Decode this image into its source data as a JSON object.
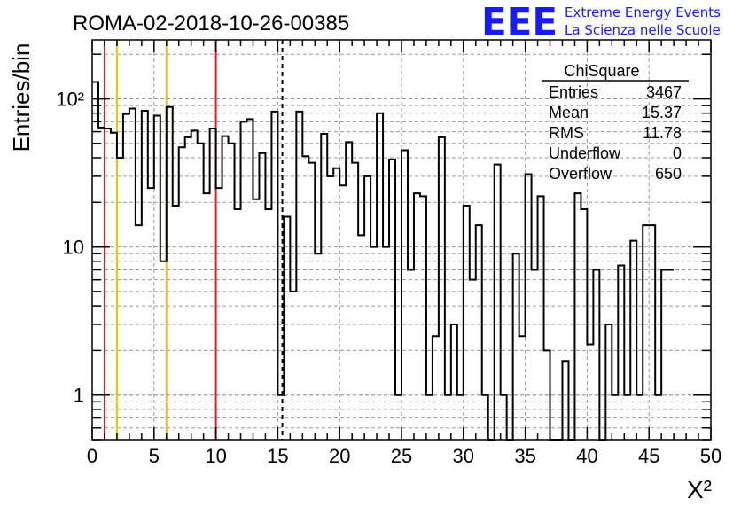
{
  "logo": {
    "text": "EEE",
    "line1": "Extreme Energy Events",
    "line2": "La Scienza nelle Scuole",
    "color": "#1a1aff"
  },
  "chart_data": {
    "type": "histogram",
    "title": "ROMA-02-2018-10-26-00385",
    "xlabel": "X²",
    "ylabel": "Entries/bin",
    "xlim": [
      0,
      50
    ],
    "ylim": [
      0.5,
      250
    ],
    "y_scale": "log",
    "grid": true,
    "bin_width": 0.5,
    "x_ticks": [
      0,
      5,
      10,
      15,
      20,
      25,
      30,
      35,
      40,
      45,
      50
    ],
    "y_ticks": [
      {
        "value": 1,
        "label": "1"
      },
      {
        "value": 10,
        "label": "10"
      },
      {
        "value": 100,
        "label": "10²"
      }
    ],
    "values": [
      130,
      64,
      63,
      59,
      40,
      79,
      86,
      14,
      83,
      25,
      77,
      8,
      88,
      19,
      47,
      55,
      61,
      50,
      23,
      63,
      25,
      56,
      50,
      18,
      70,
      73,
      21,
      43,
      18,
      82,
      1,
      16,
      5,
      82,
      41,
      37,
      9,
      58,
      30,
      34,
      26,
      51,
      37,
      12,
      30,
      10,
      80,
      10,
      39,
      1,
      45,
      7,
      23,
      22,
      1,
      2.5,
      55,
      1,
      3,
      1,
      19,
      6,
      14,
      1,
      0.5,
      36,
      1,
      0.5,
      9,
      2.5,
      31,
      7,
      22,
      2,
      0.5,
      0.5,
      1.7,
      0.5,
      23,
      18,
      2.2,
      7,
      0.5,
      3,
      1,
      7.5,
      1,
      11,
      1,
      14,
      14,
      1,
      7,
      7
    ],
    "vertical_lines": [
      {
        "x": 1,
        "color": "#e02020",
        "style": "solid"
      },
      {
        "x": 2,
        "color": "#f2c200",
        "style": "solid"
      },
      {
        "x": 6,
        "color": "#f2c200",
        "style": "solid"
      },
      {
        "x": 10,
        "color": "#e02020",
        "style": "solid"
      },
      {
        "x": 15.37,
        "color": "#000000",
        "style": "dashed"
      }
    ],
    "stats": {
      "title": "ChiSquare",
      "rows": [
        {
          "label": "Entries",
          "value": "3467"
        },
        {
          "label": "Mean",
          "value": "15.37"
        },
        {
          "label": "RMS",
          "value": "11.78"
        },
        {
          "label": "Underflow",
          "value": "0"
        },
        {
          "label": "Overflow",
          "value": "650"
        }
      ]
    }
  }
}
